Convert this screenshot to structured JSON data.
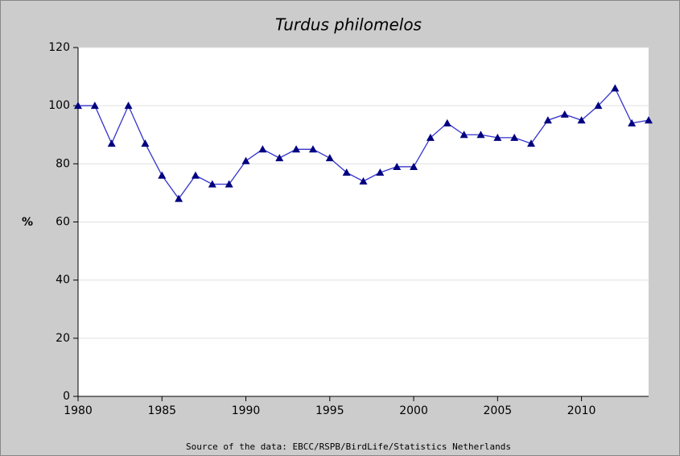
{
  "chart_data": {
    "type": "line",
    "title": "Turdus philomelos",
    "ylabel": "%",
    "source": "Source of the data: EBCC/RSPB/BirdLife/Statistics Netherlands",
    "x": [
      1980,
      1981,
      1982,
      1983,
      1984,
      1985,
      1986,
      1987,
      1988,
      1989,
      1990,
      1991,
      1992,
      1993,
      1994,
      1995,
      1996,
      1997,
      1998,
      1999,
      2000,
      2001,
      2002,
      2003,
      2004,
      2005,
      2006,
      2007,
      2008,
      2009,
      2010,
      2011,
      2012,
      2013,
      2014
    ],
    "series": [
      {
        "color": "#3333cc",
        "marker_color": "#000080",
        "values": [
          100,
          100,
          87,
          100,
          87,
          76,
          68,
          76,
          73,
          73,
          81,
          85,
          82,
          85,
          85,
          82,
          77,
          74,
          77,
          79,
          79,
          89,
          94,
          90,
          90,
          89,
          89,
          87,
          95,
          97,
          95,
          100,
          106,
          94,
          95
        ]
      }
    ],
    "xlim": [
      1980,
      2014
    ],
    "xticks": [
      1980,
      1985,
      1990,
      1995,
      2000,
      2005,
      2010
    ],
    "ylim": [
      0,
      120
    ],
    "yticks": [
      0,
      20,
      40,
      60,
      80,
      100,
      120
    ],
    "grid": true
  }
}
